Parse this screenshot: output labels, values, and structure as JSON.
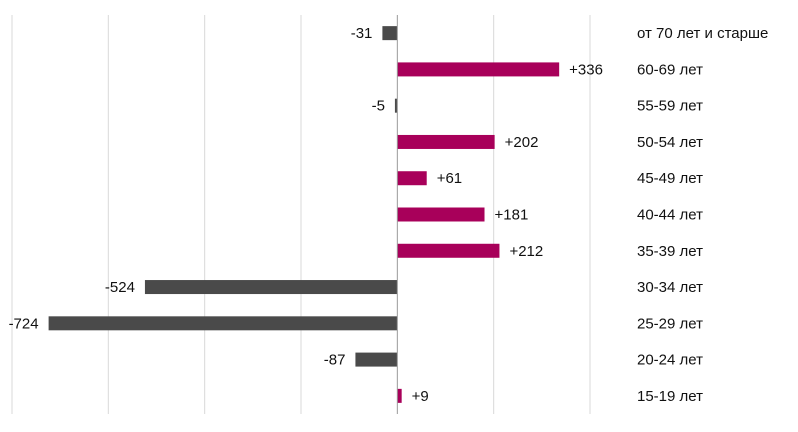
{
  "chart_data": {
    "type": "bar",
    "orientation": "horizontal",
    "categories": [
      "от 70 лет и старше",
      "60-69 лет",
      "55-59 лет",
      "50-54 лет",
      "45-49 лет",
      "40-44 лет",
      "35-39 лет",
      "30-34 лет",
      "25-29 лет",
      "20-24 лет",
      "15-19 лет"
    ],
    "values": [
      -31,
      336,
      -5,
      202,
      61,
      181,
      212,
      -524,
      -724,
      -87,
      9
    ],
    "value_labels": [
      "-31",
      "+336",
      "-5",
      "+202",
      "+61",
      "+181",
      "+212",
      "-524",
      "-724",
      "-87",
      "+9"
    ],
    "xlim": [
      -800,
      400
    ],
    "grid": "vertical",
    "legend": "none",
    "colors": {
      "positive": "#a8005a",
      "negative": "#4a4a4a",
      "grid": "#d9d9d9",
      "axis": "#999999"
    }
  }
}
